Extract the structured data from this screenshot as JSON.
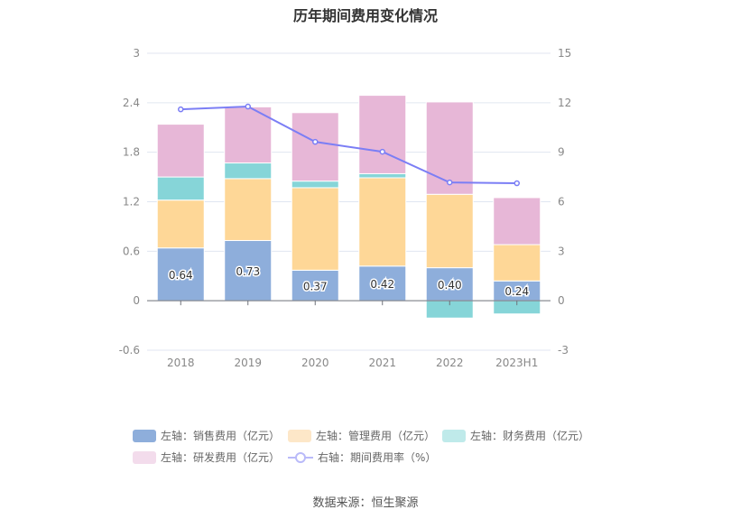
{
  "chart_data": {
    "type": "bar",
    "title": "历年期间费用变化情况",
    "categories": [
      "2018",
      "2019",
      "2020",
      "2021",
      "2022",
      "2023H1"
    ],
    "left_axis": {
      "ylim": [
        -0.6,
        3
      ],
      "ticks": [
        "-0.6",
        "0",
        "0.6",
        "1.2",
        "1.8",
        "2.4",
        "3"
      ]
    },
    "right_axis": {
      "ylim": [
        -3,
        15
      ],
      "ticks": [
        "-3",
        "0",
        "3",
        "6",
        "9",
        "12",
        "15"
      ]
    },
    "series": [
      {
        "name": "左轴：销售费用（亿元）",
        "type": "bar",
        "color": "#8eaedb",
        "values": [
          0.64,
          0.73,
          0.37,
          0.42,
          0.4,
          0.24
        ],
        "labels": [
          "0.64",
          "0.73",
          "0.37",
          "0.42",
          "0.40",
          "0.24"
        ]
      },
      {
        "name": "左轴：管理费用（亿元）",
        "type": "bar",
        "color": "#fed797",
        "legend_color": "#fde7c8",
        "values": [
          0.58,
          0.75,
          1.0,
          1.07,
          0.89,
          0.44
        ]
      },
      {
        "name": "左轴：财务费用（亿元）",
        "type": "bar",
        "color": "#86d5d8",
        "legend_color": "#bfeaea",
        "values": [
          0.28,
          0.19,
          0.08,
          0.05,
          -0.21,
          -0.16
        ]
      },
      {
        "name": "左轴：研发费用（亿元）",
        "type": "bar",
        "color": "#e7b7d7",
        "legend_color": "#f3dcec",
        "values": [
          0.64,
          0.68,
          0.83,
          0.95,
          1.12,
          0.57
        ]
      },
      {
        "name": "右轴：期间费用率（%）",
        "type": "line",
        "color": "#7b7ef5",
        "values": [
          11.6,
          11.77,
          9.63,
          9.03,
          7.17,
          7.12
        ]
      }
    ]
  },
  "source": "数据来源：恒生聚源"
}
